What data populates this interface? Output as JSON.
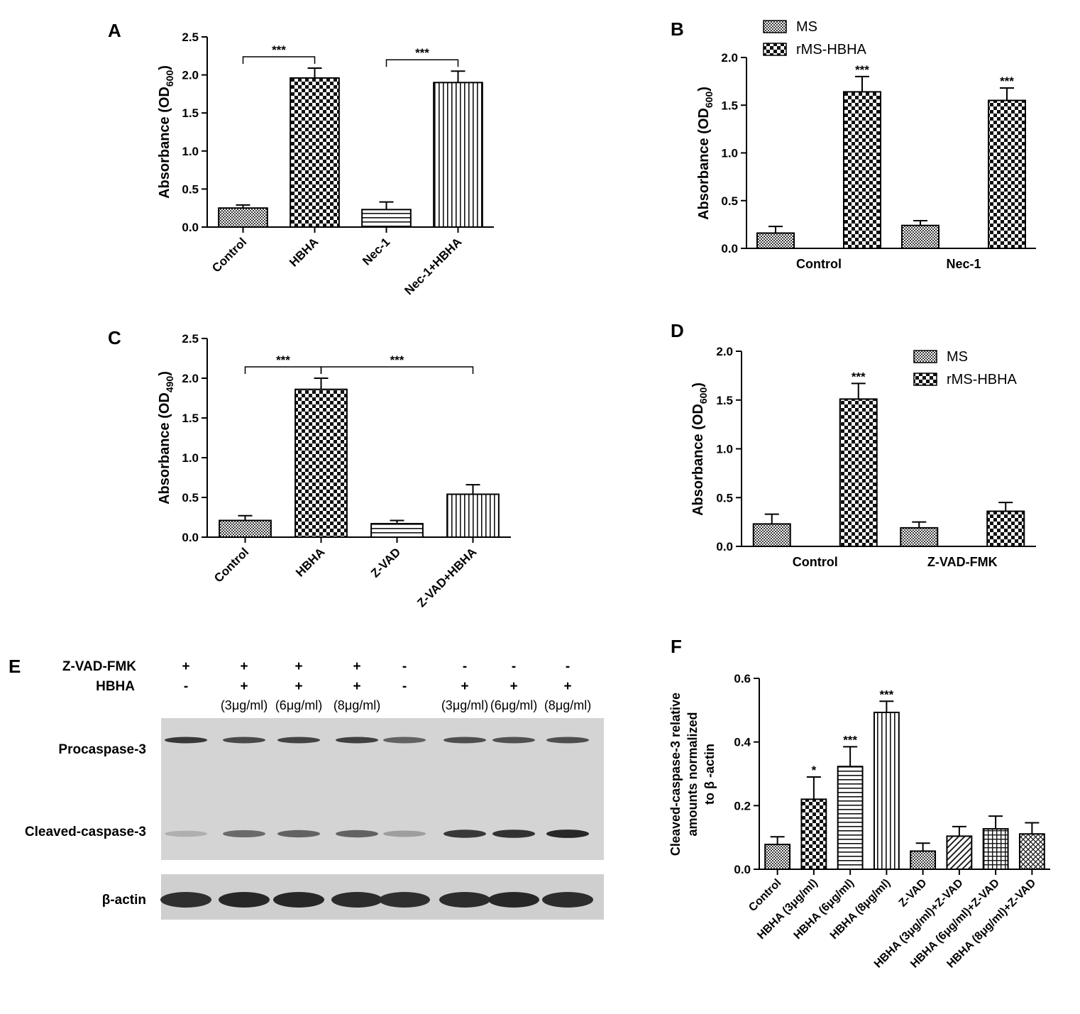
{
  "panels": {
    "a": {
      "letter": "A"
    },
    "b": {
      "letter": "B"
    },
    "c": {
      "letter": "C"
    },
    "d": {
      "letter": "D"
    },
    "e": {
      "letter": "E"
    },
    "f": {
      "letter": "F"
    }
  },
  "chart_data": [
    {
      "id": "A",
      "type": "bar",
      "ylabel": "Absorbance (OD600)",
      "ylabel_main": "Absorbance (OD",
      "ylabel_sub": "600",
      "ylabel_end": ")",
      "ylim": [
        0,
        2.5
      ],
      "yticks": [
        "0.0",
        "0.5",
        "1.0",
        "1.5",
        "2.0",
        "2.5"
      ],
      "categories": [
        "Control",
        "HBHA",
        "Nec-1",
        "Nec-1+HBHA"
      ],
      "values": [
        0.25,
        1.96,
        0.23,
        1.9
      ],
      "errors": [
        0.04,
        0.13,
        0.1,
        0.15
      ],
      "patterns": [
        "fine",
        "checker",
        "hline",
        "vline"
      ],
      "brackets": [
        {
          "from": 0,
          "to": 1,
          "label": "***"
        },
        {
          "from": 2,
          "to": 3,
          "label": "***"
        }
      ]
    },
    {
      "id": "B",
      "type": "bar",
      "ylabel": "Absorbance (OD600)",
      "ylabel_main": "Absorbance (OD",
      "ylabel_sub": "600",
      "ylabel_end": ")",
      "ylim": [
        0,
        2.0
      ],
      "yticks": [
        "0.0",
        "0.5",
        "1.0",
        "1.5",
        "2.0"
      ],
      "categories": [
        "Control",
        "Nec-1"
      ],
      "legend_position": "top-left",
      "series": [
        {
          "name": "MS",
          "values": [
            0.16,
            0.24
          ],
          "errors": [
            0.07,
            0.05
          ],
          "pattern": "fine",
          "stars": [
            "",
            ""
          ]
        },
        {
          "name": "rMS-HBHA",
          "values": [
            1.64,
            1.55
          ],
          "errors": [
            0.16,
            0.13
          ],
          "pattern": "checker",
          "stars": [
            "***",
            "***"
          ]
        }
      ]
    },
    {
      "id": "C",
      "type": "bar",
      "ylabel": "Absorbance (OD490)",
      "ylabel_main": "Absorbance (OD",
      "ylabel_sub": "490",
      "ylabel_end": ")",
      "ylim": [
        0,
        2.5
      ],
      "yticks": [
        "0.0",
        "0.5",
        "1.0",
        "1.5",
        "2.0",
        "2.5"
      ],
      "categories": [
        "Control",
        "HBHA",
        "Z-VAD",
        "Z-VAD+HBHA"
      ],
      "values": [
        0.21,
        1.86,
        0.17,
        0.54
      ],
      "errors": [
        0.06,
        0.14,
        0.04,
        0.12
      ],
      "patterns": [
        "fine",
        "checker",
        "hline",
        "vline"
      ],
      "brackets": [
        {
          "from": 0,
          "to": 1,
          "label": "***"
        },
        {
          "from": 1,
          "to": 3,
          "label": "***"
        }
      ]
    },
    {
      "id": "D",
      "type": "bar",
      "ylabel": "Absorbance (OD600)",
      "ylabel_main": "Absorbance (OD",
      "ylabel_sub": "600",
      "ylabel_end": ")",
      "ylim": [
        0,
        2.0
      ],
      "yticks": [
        "0.0",
        "0.5",
        "1.0",
        "1.5",
        "2.0"
      ],
      "categories": [
        "Control",
        "Z-VAD-FMK"
      ],
      "legend_position": "top-right",
      "series": [
        {
          "name": "MS",
          "values": [
            0.23,
            0.19
          ],
          "errors": [
            0.1,
            0.06
          ],
          "pattern": "fine",
          "stars": [
            "",
            ""
          ]
        },
        {
          "name": "rMS-HBHA",
          "values": [
            1.51,
            0.36
          ],
          "errors": [
            0.16,
            0.09
          ],
          "pattern": "checker",
          "stars": [
            "***",
            ""
          ]
        }
      ]
    },
    {
      "id": "F",
      "type": "bar",
      "ylabel_lines": [
        "Cleaved-caspase-3 relative",
        "amounts normalized",
        "to β -actin"
      ],
      "ylim": [
        0,
        0.6
      ],
      "yticks": [
        "0.0",
        "0.2",
        "0.4",
        "0.6"
      ],
      "categories": [
        "Control",
        "HBHA (3μg/ml)",
        "HBHA (6μg/ml)",
        "HBHA (8μg/ml)",
        "Z-VAD",
        "HBHA (3μg/ml)+Z-VAD",
        "HBHA (6μg/ml)+Z-VAD",
        "HBHA (8μg/ml)+Z-VAD"
      ],
      "values": [
        0.078,
        0.22,
        0.323,
        0.493,
        0.057,
        0.104,
        0.127,
        0.111
      ],
      "errors": [
        0.024,
        0.07,
        0.062,
        0.035,
        0.025,
        0.03,
        0.04,
        0.035
      ],
      "patterns": [
        "fine",
        "checker",
        "hline",
        "vline",
        "fine",
        "diag",
        "grid",
        "crosshatch"
      ],
      "stars": [
        "",
        "*",
        "***",
        "***",
        "",
        "",
        "",
        ""
      ]
    }
  ],
  "blot": {
    "rows": [
      {
        "label": "Z-VAD-FMK",
        "marks": [
          "+",
          "+",
          "+",
          "+",
          "-",
          "-",
          "-",
          "-"
        ]
      },
      {
        "label": "HBHA",
        "marks": [
          "-",
          "+",
          "+",
          "+",
          "-",
          "+",
          "+",
          "+"
        ]
      }
    ],
    "doses": [
      "",
      "(3μg/ml)",
      "(6μg/ml)",
      "(8μg/ml)",
      "",
      "(3μg/ml)",
      "(6μg/ml)",
      "(8μg/ml)"
    ],
    "band_labels": [
      "Procaspase-3",
      "Cleaved-caspase-3",
      "β-actin"
    ],
    "procaspase_intensity": [
      0.85,
      0.75,
      0.78,
      0.8,
      0.6,
      0.72,
      0.7,
      0.72
    ],
    "cleaved_intensity": [
      0.15,
      0.55,
      0.6,
      0.6,
      0.25,
      0.85,
      0.88,
      0.95
    ],
    "actin_intensity": [
      0.9,
      0.95,
      0.95,
      0.92,
      0.9,
      0.92,
      0.95,
      0.92
    ]
  }
}
